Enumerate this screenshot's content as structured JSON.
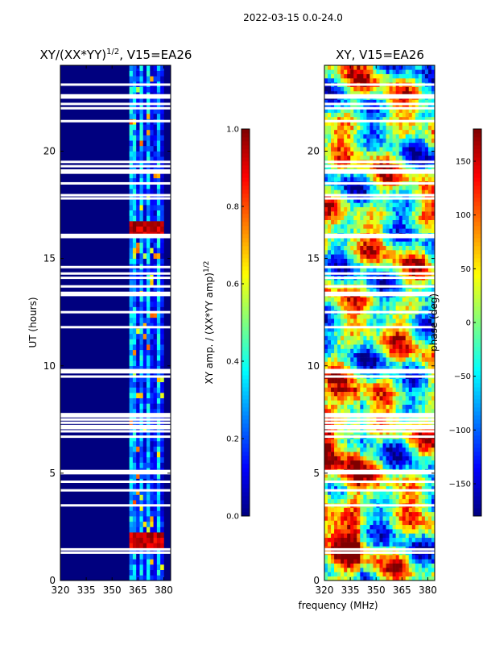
{
  "suptitle": "2022-03-15 0.0-24.0",
  "shared_xlabel": "frequency (MHz)",
  "colors": {
    "jet": [
      "#00007f",
      "#0000ff",
      "#007fff",
      "#00ffff",
      "#7fff7f",
      "#ffff00",
      "#ff7f00",
      "#ff0000",
      "#7f0000"
    ],
    "flag": "#ffffff"
  },
  "chart_data": [
    {
      "type": "heatmap",
      "panel": "amplitude",
      "title_main": "XY/(XX*YY)",
      "title_sup": "1/2",
      "title_rest": ", V15=EA26",
      "xlabel": "",
      "ylabel": "UT (hours)",
      "xlim": [
        320,
        384
      ],
      "ylim": [
        0,
        24
      ],
      "xticks": [
        320,
        335,
        350,
        365,
        380
      ],
      "yticks": [
        0,
        5,
        10,
        15,
        20
      ],
      "active_band_mhz": [
        361,
        380
      ],
      "bright_rows_hours": [
        1.9,
        2.0,
        16.4
      ],
      "colorbar": {
        "label_main": "XY amp. / (XX*YY amp)",
        "label_sup": "1/2",
        "range": [
          0.0,
          1.0
        ],
        "ticks": [
          "0.0",
          "0.2",
          "0.4",
          "0.6",
          "0.8",
          "1.0"
        ]
      }
    },
    {
      "type": "heatmap",
      "panel": "phase",
      "title": "XY, V15=EA26",
      "xlabel": "frequency (MHz)",
      "ylabel": "",
      "xlim": [
        320,
        384
      ],
      "ylim": [
        0,
        24
      ],
      "xticks": [
        320,
        335,
        350,
        365,
        380
      ],
      "yticks": [
        0,
        5,
        10,
        15,
        20
      ],
      "colorbar": {
        "label": "phase (deg)",
        "range": [
          -180,
          180
        ],
        "ticks": [
          "−150",
          "−100",
          "−50",
          "0",
          "50",
          "100",
          "150"
        ]
      }
    }
  ],
  "flagged_rows_hours": [
    1.3,
    1.45,
    3.5,
    4.2,
    4.6,
    5.0,
    5.1,
    6.7,
    6.95,
    7.1,
    7.2,
    7.35,
    7.5,
    7.65,
    7.75,
    9.5,
    9.7,
    9.8,
    11.8,
    12.5,
    13.3,
    13.4,
    13.7,
    14.1,
    14.3,
    14.6,
    16.0,
    16.1,
    17.8,
    17.95,
    18.5,
    19.0,
    19.1,
    19.3,
    19.5,
    21.4,
    22.0,
    22.2,
    22.5,
    22.6,
    23.1
  ]
}
